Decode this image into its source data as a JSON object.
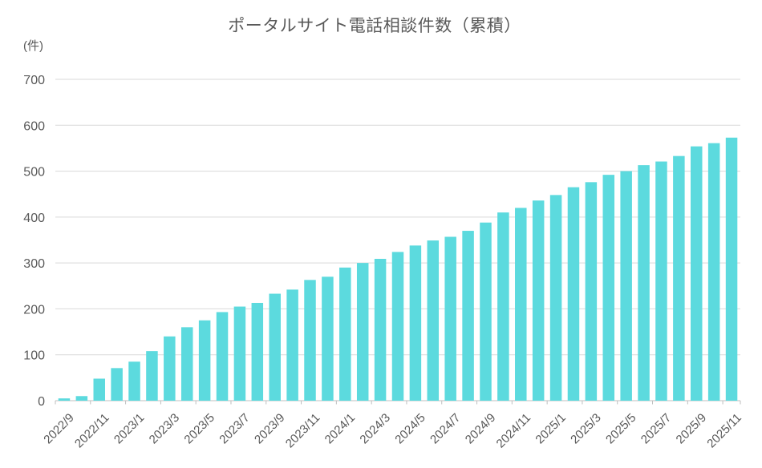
{
  "title": "ポータルサイト電話相談件数（累積）",
  "y_axis": {
    "unit_label": "(件)"
  },
  "colors": {
    "text": "#595959",
    "gridline": "#d9d9d9",
    "axis": "#bfbfbf",
    "bar": "#5cdade",
    "background": "#ffffff"
  },
  "chart_data": {
    "type": "bar",
    "title": "ポータルサイト電話相談件数（累積）",
    "ylabel": "(件)",
    "ylim": [
      0,
      700
    ],
    "yticks": [
      0,
      100,
      200,
      300,
      400,
      500,
      600,
      700
    ],
    "grid": true,
    "legend": "none",
    "bar_color": "#5cdade",
    "x_labels_shown_every": 2,
    "x_label_rotation_deg": -45,
    "categories": [
      "2022/9",
      "2022/10",
      "2022/11",
      "2022/12",
      "2023/1",
      "2023/2",
      "2023/3",
      "2023/4",
      "2023/5",
      "2023/6",
      "2023/7",
      "2023/8",
      "2023/9",
      "2023/10",
      "2023/11",
      "2023/12",
      "2024/1",
      "2024/2",
      "2024/3",
      "2024/4",
      "2024/5",
      "2024/6",
      "2024/7",
      "2024/8",
      "2024/9",
      "2024/10",
      "2024/11",
      "2024/12",
      "2025/1",
      "2025/2",
      "2025/3",
      "2025/4",
      "2025/5",
      "2025/6",
      "2025/7",
      "2025/8",
      "2025/9",
      "2025/10",
      "2025/11"
    ],
    "values": [
      5,
      10,
      48,
      71,
      85,
      108,
      140,
      160,
      175,
      193,
      205,
      213,
      233,
      242,
      263,
      270,
      290,
      300,
      309,
      324,
      338,
      349,
      357,
      370,
      388,
      410,
      420,
      436,
      448,
      465,
      476,
      492,
      500,
      513,
      521,
      533,
      554,
      561,
      573
    ]
  }
}
